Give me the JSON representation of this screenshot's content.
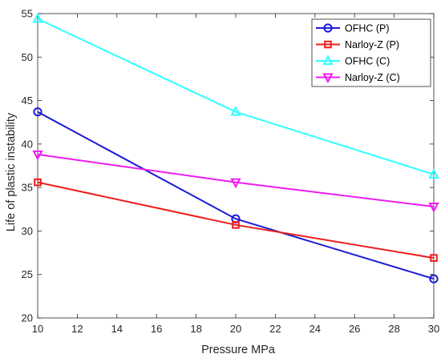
{
  "chart_data": {
    "type": "line",
    "title": "",
    "xlabel": "Pressure MPa",
    "ylabel": "Life of plastic instability",
    "x": [
      10,
      20,
      30
    ],
    "xlim": [
      10,
      30
    ],
    "ylim": [
      20,
      55
    ],
    "xticks": [
      10,
      12,
      14,
      16,
      18,
      20,
      22,
      24,
      26,
      28,
      30
    ],
    "yticks": [
      20,
      25,
      30,
      35,
      40,
      45,
      50,
      55
    ],
    "grid": false,
    "legend_position": "top-right",
    "series": [
      {
        "name": "OFHC (P)",
        "values": [
          43.7,
          31.4,
          24.5
        ],
        "color": "#1c1cd6",
        "marker": "circle"
      },
      {
        "name": "Narloy-Z (P)",
        "values": [
          35.6,
          30.7,
          26.9
        ],
        "color": "#ee1c1c",
        "marker": "square"
      },
      {
        "name": "OFHC (C)",
        "values": [
          54.4,
          43.7,
          36.5
        ],
        "color": "#33ffff",
        "marker": "triangle-up"
      },
      {
        "name": "Narloy-Z (C)",
        "values": [
          38.8,
          35.6,
          32.8
        ],
        "color": "#ee1cee",
        "marker": "triangle-down"
      }
    ]
  }
}
